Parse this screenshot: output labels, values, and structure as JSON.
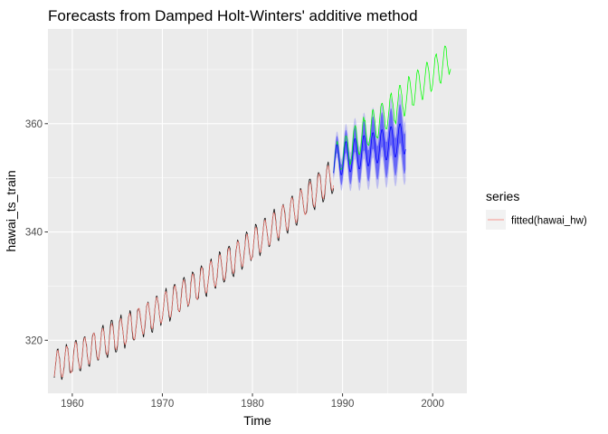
{
  "chart_data": {
    "type": "line",
    "title": "Forecasts from Damped Holt-Winters' additive method",
    "xlabel": "Time",
    "ylabel": "hawai_ts_train",
    "xlim": [
      1957.3,
      2003.8
    ],
    "ylim": [
      310.2,
      377.5
    ],
    "x_ticks": [
      1960,
      1970,
      1980,
      1990,
      2000
    ],
    "x_tick_labels": [
      "1960",
      "1970",
      "1980",
      "1990",
      "2000"
    ],
    "y_ticks": [
      320,
      340,
      360
    ],
    "y_tick_labels": [
      "320",
      "340",
      "360"
    ],
    "grid": true,
    "legend": {
      "title": "series",
      "position": "right",
      "entries": [
        {
          "label": "fitted(hawai_hw)",
          "color": "#F8766D"
        }
      ]
    },
    "series": [
      {
        "name": "fitted(hawai_hw)",
        "role": "fitted",
        "color": "#F8766D",
        "x_start": 1958.0,
        "x_end": 1989.0,
        "trend_poly": [
          315.2,
          0.74,
          0.0129
        ],
        "seasonal_amplitude": 2.7,
        "seasonal_peak_month": 5
      },
      {
        "role": "observed_train",
        "color": "#000000",
        "x_start": 1958.0,
        "x_end": 1989.0,
        "trend_poly": [
          315.2,
          0.74,
          0.0129
        ],
        "seasonal_amplitude": 3.0,
        "seasonal_peak_month": 5
      },
      {
        "role": "observed_test",
        "color": "#00FF00",
        "x_start": 1989.0,
        "x_end": 2002.0,
        "start_value": 352.9,
        "trend_per_year": 1.5,
        "seasonal_amplitude": 3.0,
        "seasonal_peak_month": 5
      },
      {
        "role": "point_forecast",
        "color": "#0000FF",
        "x_start": 1989.0,
        "x_end": 1997.0,
        "start_value": 353.0,
        "trend_per_year": 0.55,
        "seasonal_amplitude": 3.0,
        "seasonal_peak_month": 5
      }
    ],
    "forecast_intervals": [
      {
        "level": 80,
        "color": "#0000FF",
        "opacity": 0.45,
        "halfwidth_start": 1.0,
        "halfwidth_growth": 0.95
      },
      {
        "level": 95,
        "color": "#0000FF",
        "opacity": 0.2,
        "halfwidth_start": 1.5,
        "halfwidth_growth": 1.5
      }
    ]
  }
}
